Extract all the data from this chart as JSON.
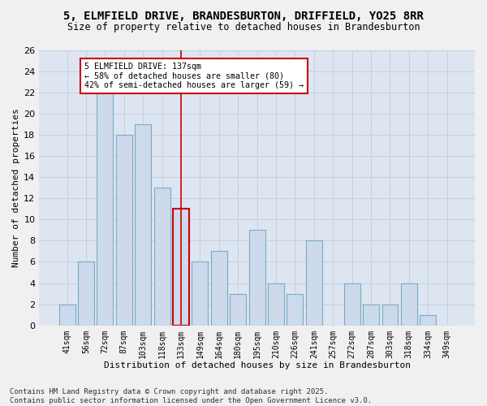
{
  "title1": "5, ELMFIELD DRIVE, BRANDESBURTON, DRIFFIELD, YO25 8RR",
  "title2": "Size of property relative to detached houses in Brandesburton",
  "xlabel": "Distribution of detached houses by size in Brandesburton",
  "ylabel": "Number of detached properties",
  "categories": [
    "41sqm",
    "56sqm",
    "72sqm",
    "87sqm",
    "103sqm",
    "118sqm",
    "133sqm",
    "149sqm",
    "164sqm",
    "180sqm",
    "195sqm",
    "210sqm",
    "226sqm",
    "241sqm",
    "257sqm",
    "272sqm",
    "287sqm",
    "303sqm",
    "318sqm",
    "334sqm",
    "349sqm"
  ],
  "values": [
    2,
    6,
    22,
    18,
    19,
    13,
    11,
    6,
    7,
    3,
    9,
    4,
    3,
    8,
    0,
    4,
    2,
    2,
    4,
    1,
    0
  ],
  "bar_color": "#ccdaeb",
  "bar_edge_color": "#7aaaca",
  "highlight_bar_index": 6,
  "highlight_edge_color": "#cc0000",
  "vline_color": "#cc0000",
  "vline_x": 6,
  "ylim": [
    0,
    26
  ],
  "yticks": [
    0,
    2,
    4,
    6,
    8,
    10,
    12,
    14,
    16,
    18,
    20,
    22,
    24,
    26
  ],
  "grid_color": "#c5cfe0",
  "axes_bg": "#dde6f0",
  "fig_bg": "#f0f0f0",
  "annotation_title": "5 ELMFIELD DRIVE: 137sqm",
  "annotation_line1": "← 58% of detached houses are smaller (80)",
  "annotation_line2": "42% of semi-detached houses are larger (59) →",
  "ann_box_fc": "#ffffff",
  "ann_box_ec": "#cc0000",
  "footer_line1": "Contains HM Land Registry data © Crown copyright and database right 2025.",
  "footer_line2": "Contains public sector information licensed under the Open Government Licence v3.0."
}
